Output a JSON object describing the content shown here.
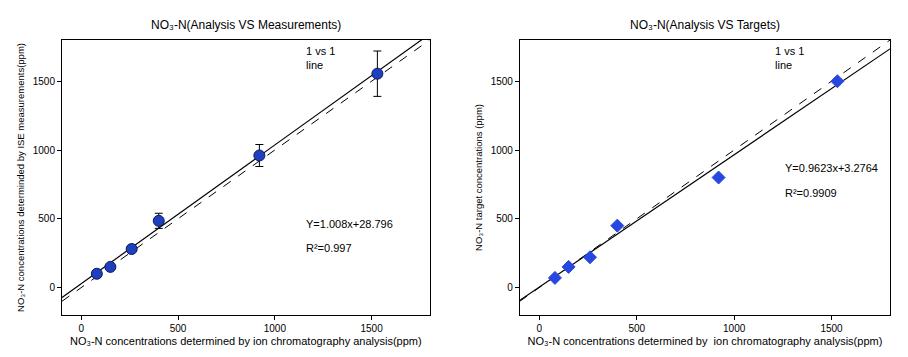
{
  "chart_data": [
    {
      "type": "scatter",
      "title": "NO₃-N(Analysis VS Measurements)",
      "x_label": "NO₃-N concentrations determined by ion chromatography analysis(ppm)",
      "y_label": "NO₃-N concentrations determinded by ISE measurements(ppm)",
      "x": [
        80,
        150,
        260,
        400,
        920,
        1530
      ],
      "values": [
        100,
        150,
        280,
        485,
        960,
        1555
      ],
      "errors": [
        15,
        15,
        15,
        55,
        80,
        165
      ],
      "marker": "circle",
      "color": "#1f3fbf",
      "xlim": [
        -100,
        1800
      ],
      "ylim": [
        -200,
        1800
      ],
      "xticks": [
        0,
        500,
        1000,
        1500
      ],
      "yticks": [
        0,
        500,
        1000,
        1500
      ],
      "fit": {
        "slope": 1.008,
        "intercept": 28.796
      },
      "equation": "Y=1.008x+28.796",
      "r_squared": "R²=0.997",
      "reference_line": [
        "1 vs 1",
        "line"
      ],
      "grid": false
    },
    {
      "type": "scatter",
      "title": "NO₃-N(Analysis VS Targets)",
      "x_label": "NO₃-N concentrations determined by  ion chromatography analysis(ppm)",
      "y_label": "NO₃-N target concentrations (ppm)",
      "x": [
        80,
        150,
        260,
        400,
        920,
        1530
      ],
      "values": [
        70,
        150,
        220,
        450,
        800,
        1500
      ],
      "marker": "diamond",
      "color": "#2747e0",
      "xlim": [
        -100,
        1800
      ],
      "ylim": [
        -200,
        1800
      ],
      "xticks": [
        0,
        500,
        1000,
        1500
      ],
      "yticks": [
        0,
        500,
        1000,
        1500
      ],
      "fit": {
        "slope": 0.9623,
        "intercept": 3.2764
      },
      "equation": "Y=0.9623x+3.2764",
      "r_squared": "R²=0.9909",
      "reference_line": [
        "1 vs 1",
        "line"
      ],
      "grid": false
    }
  ]
}
